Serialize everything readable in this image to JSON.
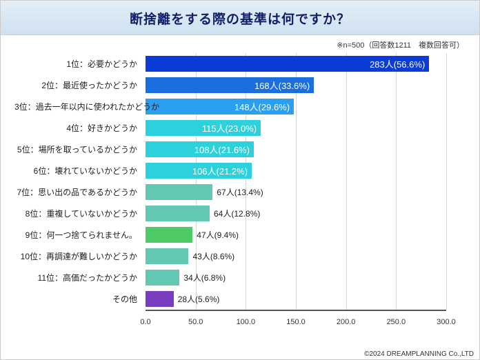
{
  "chart": {
    "type": "horizontal-bar",
    "title": "断捨離をする際の基準は何ですか？",
    "subnote": "※n=500（回答数1211　複数回答可）",
    "xlim": [
      0,
      300
    ],
    "xtick_step": 50,
    "xticks": [
      "0.0",
      "50.0",
      "100.0",
      "150.0",
      "200.0",
      "250.0",
      "300.0"
    ],
    "background_color": "#ffffff",
    "grid_color": "#d6d6d6",
    "header_gradient_top": "#e4eef7",
    "header_gradient_bottom": "#cfe1f0",
    "title_color": "#102068",
    "title_fontsize": 19,
    "label_fontsize": 12,
    "value_fontsize": 13,
    "bars": [
      {
        "label": "1位：必要かどうか",
        "value": 283,
        "pct": "56.6%",
        "text": "283人(56.6%)",
        "color": "#0b3cd6",
        "text_inside": true
      },
      {
        "label": "2位：最近使ったかどうか",
        "value": 168,
        "pct": "33.6%",
        "text": "168人(33.6%)",
        "color": "#1a6ee0",
        "text_inside": true
      },
      {
        "label": "3位：過去一年以内に使われたかどうか",
        "value": 148,
        "pct": "29.6%",
        "text": "148人(29.6%)",
        "color": "#2a9fef",
        "text_inside": true
      },
      {
        "label": "4位：好きかどうか",
        "value": 115,
        "pct": "23.0%",
        "text": "115人(23.0%)",
        "color": "#2dd1db",
        "text_inside": true
      },
      {
        "label": "5位：場所を取っているかどうか",
        "value": 108,
        "pct": "21.6%",
        "text": "108人(21.6%)",
        "color": "#2dd1db",
        "text_inside": true
      },
      {
        "label": "6位：壊れていないかどうか",
        "value": 106,
        "pct": "21.2%",
        "text": "106人(21.2%)",
        "color": "#2dd1db",
        "text_inside": true
      },
      {
        "label": "7位：思い出の品であるかどうか",
        "value": 67,
        "pct": "13.4%",
        "text": "67人(13.4%)",
        "color": "#62c8b4",
        "text_inside": false
      },
      {
        "label": "8位：重複していないかどうか",
        "value": 64,
        "pct": "12.8%",
        "text": "64人(12.8%)",
        "color": "#62c8b4",
        "text_inside": false
      },
      {
        "label": "9位：何一つ捨てられません。",
        "value": 47,
        "pct": "9.4%",
        "text": "47人(9.4%)",
        "color": "#4ecb66",
        "text_inside": false
      },
      {
        "label": "10位：再調達が難しいかどうか",
        "value": 43,
        "pct": "8.6%",
        "text": "43人(8.6%)",
        "color": "#62c8b4",
        "text_inside": false
      },
      {
        "label": "11位：高価だったかどうか",
        "value": 34,
        "pct": "6.8%",
        "text": "34人(6.8%)",
        "color": "#62c8b4",
        "text_inside": false
      },
      {
        "label": "その他",
        "value": 28,
        "pct": "5.6%",
        "text": "28人(5.6%)",
        "color": "#7a3cc0",
        "text_inside": false
      }
    ]
  },
  "copyright": "©2024 DREAMPLANNING Co.,LTD"
}
